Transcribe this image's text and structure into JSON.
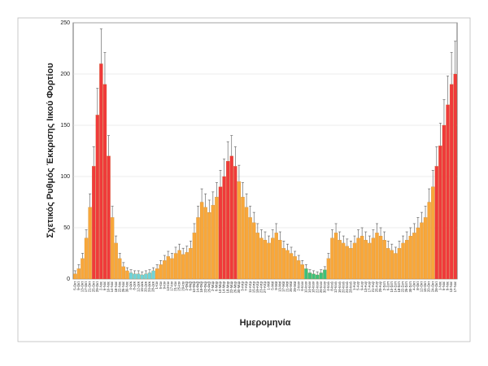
{
  "chart_data": {
    "type": "bar",
    "ylabel": "Σχετικός Ρυθμός Έκκρισης Ιικού Φορτίου",
    "xlabel": "Ημερομηνία",
    "ylim": [
      0,
      250
    ],
    "yticks": [
      0,
      50,
      100,
      150,
      200,
      250
    ],
    "grid": true,
    "error_color": "#555555",
    "categories": [
      "5-Οκτ",
      "9-Οκτ",
      "13-Οκτ",
      "17-Οκτ",
      "21-Οκτ",
      "25-Οκτ",
      "29-Οκτ",
      "2-Νοε",
      "6-Νοε",
      "10-Νοε",
      "14-Νοε",
      "18-Νοε",
      "22-Νοε",
      "26-Νοε",
      "30-Νοε",
      "4-Δεκ",
      "8-Δεκ",
      "12-Δεκ",
      "16-Δεκ",
      "20-Δεκ",
      "24-Δεκ",
      "28-Δεκ",
      "1-Ιαν",
      "5-Ιαν",
      "9-Ιαν",
      "13-Ιαν",
      "17-Ιαν",
      "21-Ιαν",
      "25-Ιαν",
      "29-Ιαν",
      "2-Φεβ",
      "6-Φεβ",
      "10-Φεβ",
      "14-Φεβ",
      "18-Φεβ",
      "22-Φεβ",
      "26-Φεβ",
      "2-Μαρ",
      "6-Μαρ",
      "10-Μαρ",
      "14-Μαρ",
      "18-Μαρ",
      "22-Μαρ",
      "26-Μαρ",
      "30-Μαρ",
      "3-Απρ",
      "7-Απρ",
      "11-Απρ",
      "15-Απρ",
      "19-Απρ",
      "23-Απρ",
      "27-Απρ",
      "1-Μαϊ",
      "5-Μαϊ",
      "9-Μαϊ",
      "13-Μαϊ",
      "17-Μαϊ",
      "21-Μαϊ",
      "25-Μαϊ",
      "29-Μαϊ",
      "2-Ιουν",
      "6-Ιουν",
      "10-Ιουν",
      "14-Ιουν",
      "18-Ιουν",
      "22-Ιουν",
      "26-Ιουν",
      "30-Ιουν",
      "4-Ιουλ",
      "8-Ιουλ",
      "12-Ιουλ",
      "16-Ιουλ",
      "20-Ιουλ",
      "24-Ιουλ",
      "28-Ιουλ",
      "1-Αυγ",
      "5-Αυγ",
      "9-Αυγ",
      "13-Αυγ",
      "17-Αυγ",
      "21-Αυγ",
      "25-Αυγ",
      "29-Αυγ",
      "2-Σεπ",
      "6-Σεπ",
      "10-Σεπ",
      "14-Σεπ",
      "18-Σεπ",
      "22-Σεπ",
      "26-Σεπ",
      "30-Σεπ",
      "4-Οκτ",
      "8-Οκτ",
      "12-Οκτ",
      "16-Οκτ",
      "20-Οκτ",
      "24-Οκτ",
      "28-Οκτ",
      "1-Νοε",
      "5-Νοε",
      "9-Νοε",
      "13-Νοε",
      "17-Νοε"
    ],
    "values": [
      5,
      10,
      20,
      40,
      70,
      110,
      160,
      210,
      190,
      120,
      60,
      35,
      20,
      12,
      8,
      6,
      5,
      5,
      4,
      5,
      6,
      8,
      10,
      14,
      18,
      22,
      20,
      25,
      28,
      24,
      26,
      30,
      45,
      60,
      75,
      70,
      65,
      72,
      80,
      90,
      100,
      115,
      120,
      110,
      95,
      80,
      70,
      60,
      55,
      45,
      40,
      38,
      35,
      40,
      45,
      38,
      30,
      28,
      25,
      22,
      18,
      14,
      10,
      6,
      5,
      4,
      6,
      9,
      20,
      40,
      45,
      38,
      35,
      32,
      30,
      35,
      40,
      42,
      38,
      35,
      40,
      45,
      42,
      38,
      30,
      28,
      25,
      30,
      35,
      38,
      42,
      45,
      50,
      55,
      60,
      75,
      90,
      110,
      130,
      150,
      170,
      190,
      200
    ],
    "errors": [
      3,
      4,
      5,
      8,
      13,
      19,
      26,
      34,
      31,
      20,
      11,
      7,
      5,
      4,
      3,
      3,
      3,
      3,
      3,
      3,
      3,
      3,
      4,
      4,
      5,
      5,
      5,
      6,
      6,
      6,
      6,
      7,
      9,
      11,
      13,
      13,
      12,
      13,
      14,
      16,
      17,
      19,
      20,
      19,
      16,
      14,
      13,
      11,
      10,
      9,
      8,
      8,
      7,
      8,
      9,
      8,
      7,
      6,
      6,
      5,
      5,
      4,
      4,
      3,
      3,
      3,
      3,
      3,
      5,
      8,
      9,
      8,
      7,
      7,
      7,
      7,
      8,
      8,
      8,
      7,
      8,
      9,
      8,
      8,
      7,
      6,
      6,
      7,
      7,
      8,
      8,
      9,
      10,
      10,
      11,
      13,
      16,
      19,
      22,
      25,
      28,
      31,
      32
    ],
    "colors": [
      "#f8a73a",
      "#f8a73a",
      "#f8a73a",
      "#f8a73a",
      "#f8a73a",
      "#f03a3a",
      "#f03a3a",
      "#f03a3a",
      "#f03a3a",
      "#f03a3a",
      "#f8a73a",
      "#f8a73a",
      "#f8a73a",
      "#f8a73a",
      "#f8a73a",
      "#6fd3d8",
      "#6fd3d8",
      "#6fd3d8",
      "#6fd3d8",
      "#6fd3d8",
      "#6fd3d8",
      "#6fd3d8",
      "#f8a73a",
      "#f8a73a",
      "#f8a73a",
      "#f8a73a",
      "#f8a73a",
      "#f8a73a",
      "#f8a73a",
      "#f8a73a",
      "#f8a73a",
      "#f8a73a",
      "#f8a73a",
      "#f8a73a",
      "#f8a73a",
      "#f8a73a",
      "#f8a73a",
      "#f8a73a",
      "#f8a73a",
      "#f03a3a",
      "#f03a3a",
      "#f03a3a",
      "#f03a3a",
      "#f03a3a",
      "#f8a73a",
      "#f8a73a",
      "#f8a73a",
      "#f8a73a",
      "#f8a73a",
      "#f8a73a",
      "#f8a73a",
      "#f8a73a",
      "#f8a73a",
      "#f8a73a",
      "#f8a73a",
      "#f8a73a",
      "#f8a73a",
      "#f8a73a",
      "#f8a73a",
      "#f8a73a",
      "#f8a73a",
      "#f8a73a",
      "#3cc07a",
      "#3cc07a",
      "#3cc07a",
      "#3cc07a",
      "#3cc07a",
      "#3cc07a",
      "#f8a73a",
      "#f8a73a",
      "#f8a73a",
      "#f8a73a",
      "#f8a73a",
      "#f8a73a",
      "#f8a73a",
      "#f8a73a",
      "#f8a73a",
      "#f8a73a",
      "#f8a73a",
      "#f8a73a",
      "#f8a73a",
      "#f8a73a",
      "#f8a73a",
      "#f8a73a",
      "#f8a73a",
      "#f8a73a",
      "#f8a73a",
      "#f8a73a",
      "#f8a73a",
      "#f8a73a",
      "#f8a73a",
      "#f8a73a",
      "#f8a73a",
      "#f8a73a",
      "#f8a73a",
      "#f8a73a",
      "#f8a73a",
      "#f03a3a",
      "#f03a3a",
      "#f03a3a",
      "#f03a3a",
      "#f03a3a",
      "#f03a3a"
    ]
  }
}
